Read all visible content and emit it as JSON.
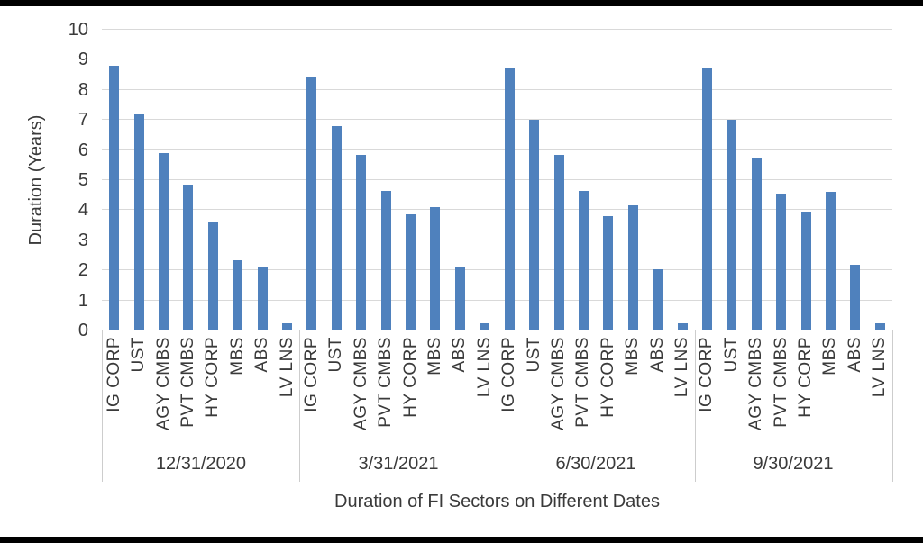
{
  "chart_data": {
    "type": "bar",
    "title": "Duration of FI Sectors on Different Dates",
    "ylabel": "Duration (Years)",
    "ylim": [
      0,
      10
    ],
    "yticks": [
      0,
      1,
      2,
      3,
      4,
      5,
      6,
      7,
      8,
      9,
      10
    ],
    "grid": true,
    "legend_position": "none",
    "bar_color": "#4F81BD",
    "gridline_color": "#D9D9D9",
    "categories": [
      "IG CORP",
      "UST",
      "AGY CMBS",
      "PVT CMBS",
      "HY CORP",
      "MBS",
      "ABS",
      "LV LNS"
    ],
    "series": [
      {
        "name": "12/31/2020",
        "values": [
          8.8,
          7.2,
          5.9,
          4.85,
          3.6,
          2.35,
          2.1,
          0.25
        ]
      },
      {
        "name": "3/31/2021",
        "values": [
          8.4,
          6.8,
          5.85,
          4.65,
          3.85,
          4.1,
          2.1,
          0.25
        ]
      },
      {
        "name": "6/30/2021",
        "values": [
          8.7,
          7.0,
          5.85,
          4.65,
          3.8,
          4.15,
          2.05,
          0.25
        ]
      },
      {
        "name": "9/30/2021",
        "values": [
          8.7,
          7.0,
          5.75,
          4.55,
          3.95,
          4.6,
          2.2,
          0.25
        ]
      }
    ]
  }
}
